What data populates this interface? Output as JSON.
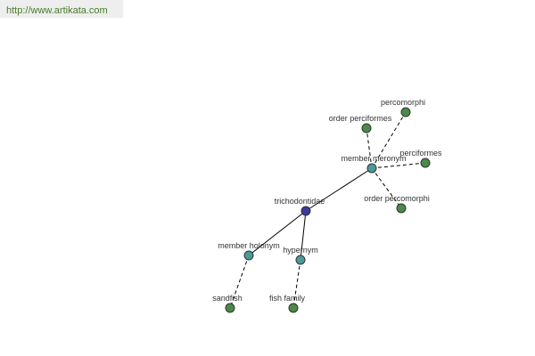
{
  "header": {
    "url": "http://www.artikata.com"
  },
  "nodes": [
    {
      "label": "trichodontidae"
    },
    {
      "label": "member meronym"
    },
    {
      "label": "member holonym"
    },
    {
      "label": "hypernym"
    },
    {
      "label": "percomorphi"
    },
    {
      "label": "order perciformes"
    },
    {
      "label": "perciformes"
    },
    {
      "label": "order percomorphi"
    },
    {
      "label": "sandfish"
    },
    {
      "label": "fish family"
    }
  ]
}
